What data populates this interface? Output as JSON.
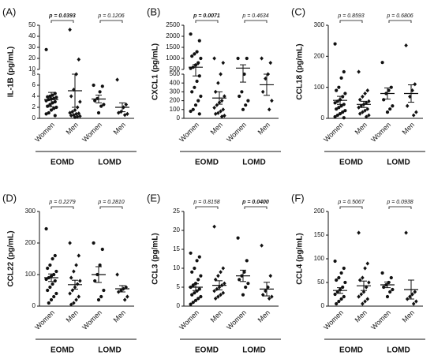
{
  "chart_data": [
    {
      "type": "dotplot",
      "panel_label": "(A)",
      "ylabel": "IL-1B (pg/mL)",
      "categories": [
        "Women",
        "Men",
        "Women",
        "Men"
      ],
      "groups": [
        "EOMD",
        "LOMD"
      ],
      "markers": [
        "circle",
        "diamond",
        "circle",
        "diamond"
      ],
      "ylim": [
        0,
        8
      ],
      "yticks": [
        0,
        2,
        4,
        6,
        8
      ],
      "axis_break": {
        "ylim": [
          10,
          50
        ],
        "yticks": [
          10,
          20,
          30,
          40,
          50
        ]
      },
      "p_values": [
        "p = 0.0393",
        "p = 0.1206"
      ],
      "p_bold": [
        true,
        false
      ],
      "points": [
        [
          28,
          4.5,
          4.2,
          4,
          3.9,
          3.8,
          3.6,
          3.5,
          3.4,
          3.2,
          3.0,
          2.8,
          2.5,
          2.2,
          2,
          1.8,
          1.5,
          1,
          0.8,
          0.5
        ],
        [
          46,
          19,
          8,
          5.2,
          4,
          3,
          2,
          1.5,
          1.2,
          1,
          0.9,
          0.8,
          0.6,
          0.5,
          0.4,
          0.3,
          0.2
        ],
        [
          6,
          5.8,
          4.8,
          3.6,
          3.2,
          2.5,
          2.2,
          1
        ],
        [
          7,
          2.5,
          2,
          1.2,
          1,
          0.8,
          0.6
        ]
      ],
      "mean": [
        3.4,
        5,
        3.5,
        2
      ],
      "sem": [
        1.3,
        3,
        0.7,
        0.8
      ]
    },
    {
      "type": "dotplot",
      "panel_label": "(B)",
      "ylabel": "CXCL1 (pg/mL)",
      "categories": [
        "Women",
        "Men",
        "Women",
        "Men"
      ],
      "groups": [
        "EOMD",
        "LOMD"
      ],
      "markers": [
        "circle",
        "diamond",
        "circle",
        "diamond"
      ],
      "ylim": [
        0,
        500
      ],
      "yticks": [
        0,
        100,
        200,
        300,
        400,
        500
      ],
      "axis_break": {
        "ylim": [
          500,
          2500
        ],
        "yticks": [
          500,
          1000,
          1500,
          2000,
          2500
        ]
      },
      "p_values": [
        "p = 0.0071",
        "p = 0.4634"
      ],
      "p_bold": [
        true,
        false
      ],
      "points": [
        [
          2100,
          1800,
          1300,
          1200,
          1100,
          1000,
          800,
          700,
          600,
          550,
          480,
          420,
          350,
          300,
          250,
          200,
          150,
          100,
          80,
          50
        ],
        [
          1000,
          800,
          500,
          400,
          300,
          250,
          200,
          180,
          150,
          120,
          100,
          80,
          60,
          50,
          30,
          20
        ],
        [
          1000,
          1000,
          500,
          300,
          250,
          200,
          150,
          100
        ],
        [
          1000,
          800,
          500,
          450,
          300,
          200,
          100
        ]
      ],
      "mean": [
        600,
        230,
        560,
        380
      ],
      "sem": [
        120,
        70,
        150,
        120
      ]
    },
    {
      "type": "dotplot",
      "panel_label": "(C)",
      "ylabel": "CCL18 (pg/mL)",
      "categories": [
        "Women",
        "Men",
        "Women",
        "Men"
      ],
      "groups": [
        "EOMD",
        "LOMD"
      ],
      "markers": [
        "circle",
        "diamond",
        "circle",
        "diamond"
      ],
      "ylim": [
        0,
        300
      ],
      "yticks": [
        0,
        100,
        200,
        300
      ],
      "p_values": [
        "p = 0.8593",
        "p = 0.6806"
      ],
      "p_bold": [
        false,
        false
      ],
      "points": [
        [
          240,
          150,
          130,
          100,
          90,
          80,
          70,
          60,
          55,
          50,
          45,
          40,
          35,
          30,
          25,
          20,
          15,
          10,
          5,
          2
        ],
        [
          150,
          90,
          80,
          70,
          60,
          55,
          50,
          45,
          40,
          35,
          30,
          25,
          20,
          15,
          10,
          5
        ],
        [
          180,
          100,
          90,
          80,
          60,
          40,
          30,
          20
        ],
        [
          235,
          110,
          90,
          70,
          40,
          20,
          10
        ]
      ],
      "mean": [
        58,
        45,
        80,
        80
      ],
      "sem": [
        13,
        10,
        18,
        28
      ]
    },
    {
      "type": "dotplot",
      "panel_label": "(D)",
      "ylabel": "CCL22 (pg/mL)",
      "categories": [
        "Women",
        "Men",
        "Women",
        "Men"
      ],
      "groups": [
        "EOMD",
        "LOMD"
      ],
      "markers": [
        "circle",
        "diamond",
        "circle",
        "diamond"
      ],
      "ylim": [
        0,
        300
      ],
      "yticks": [
        0,
        100,
        200,
        300
      ],
      "p_values": [
        "p = 0.2279",
        "p = 0.2810"
      ],
      "p_bold": [
        false,
        false
      ],
      "points": [
        [
          245,
          160,
          150,
          130,
          120,
          110,
          100,
          95,
          90,
          85,
          80,
          70,
          60,
          50,
          40,
          30,
          20,
          10
        ],
        [
          200,
          160,
          130,
          110,
          90,
          80,
          70,
          60,
          50,
          40,
          30,
          20,
          10,
          5
        ],
        [
          200,
          180,
          130,
          100,
          80,
          50,
          30,
          20
        ],
        [
          100,
          60,
          55,
          50,
          45,
          30,
          20
        ]
      ],
      "mean": [
        90,
        68,
        100,
        55
      ],
      "sem": [
        12,
        14,
        25,
        10
      ]
    },
    {
      "type": "dotplot",
      "panel_label": "(E)",
      "ylabel": "CCL3 (pg/mL)",
      "categories": [
        "Women",
        "Men",
        "Women",
        "Men"
      ],
      "groups": [
        "EOMD",
        "LOMD"
      ],
      "markers": [
        "circle",
        "diamond",
        "circle",
        "diamond"
      ],
      "ylim": [
        0,
        25
      ],
      "yticks": [
        0,
        5,
        10,
        15,
        20,
        25
      ],
      "p_values": [
        "p = 0.8158",
        "p = 0.0400"
      ],
      "p_bold": [
        false,
        true
      ],
      "points": [
        [
          14,
          13,
          12,
          10,
          9,
          8,
          7,
          6,
          5.5,
          5,
          4.5,
          4,
          3.5,
          3,
          2.5,
          2,
          1.5,
          1,
          0.5
        ],
        [
          21,
          10,
          9,
          8,
          7,
          6,
          5.5,
          5,
          4.5,
          4,
          3.5,
          3,
          2.5,
          2
        ],
        [
          18,
          12,
          9,
          8,
          7,
          6,
          5,
          3
        ],
        [
          16,
          8,
          5,
          4,
          3,
          2.5,
          2
        ]
      ],
      "mean": [
        5,
        5.5,
        8,
        4.5
      ],
      "sem": [
        0.9,
        1.2,
        1.5,
        1.8
      ]
    },
    {
      "type": "dotplot",
      "panel_label": "(F)",
      "ylabel": "CCL4 (pg/mL)",
      "categories": [
        "Women",
        "Men",
        "Women",
        "Men"
      ],
      "groups": [
        "EOMD",
        "LOMD"
      ],
      "markers": [
        "circle",
        "diamond",
        "circle",
        "diamond"
      ],
      "ylim": [
        0,
        200
      ],
      "yticks": [
        0,
        50,
        100,
        150,
        200
      ],
      "p_values": [
        "p = 0.5067",
        "p = 0.0938"
      ],
      "p_bold": [
        false,
        false
      ],
      "points": [
        [
          95,
          80,
          70,
          60,
          55,
          50,
          40,
          35,
          30,
          25,
          20,
          15,
          10,
          5
        ],
        [
          155,
          90,
          80,
          60,
          55,
          50,
          40,
          30,
          25,
          20,
          15,
          10,
          5
        ],
        [
          70,
          60,
          50,
          45,
          40,
          35,
          30,
          20
        ],
        [
          155,
          30,
          25,
          20,
          15,
          10,
          5
        ]
      ],
      "mean": [
        33,
        43,
        45,
        35
      ],
      "sem": [
        6,
        10,
        6,
        20
      ]
    }
  ]
}
